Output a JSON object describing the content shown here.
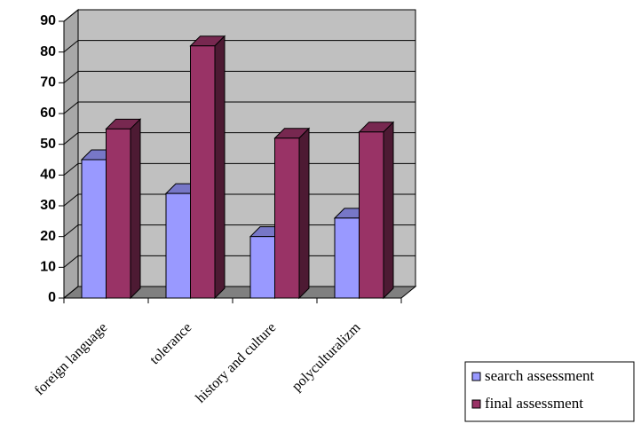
{
  "chart_data": {
    "type": "bar3d",
    "categories": [
      "foreign language",
      "tolerance",
      "history and culture",
      "polyculturalizm"
    ],
    "series": [
      {
        "name": "search assessment",
        "color": "#9999ff",
        "values": [
          45,
          34,
          20,
          26
        ]
      },
      {
        "name": "final assessment",
        "color": "#993366",
        "values": [
          55,
          82,
          52,
          54
        ]
      }
    ],
    "ylim": [
      0,
      90
    ],
    "yticks": [
      0,
      10,
      20,
      30,
      40,
      50,
      60,
      70,
      80,
      90
    ],
    "grid": true,
    "legend": "bottom-right"
  }
}
